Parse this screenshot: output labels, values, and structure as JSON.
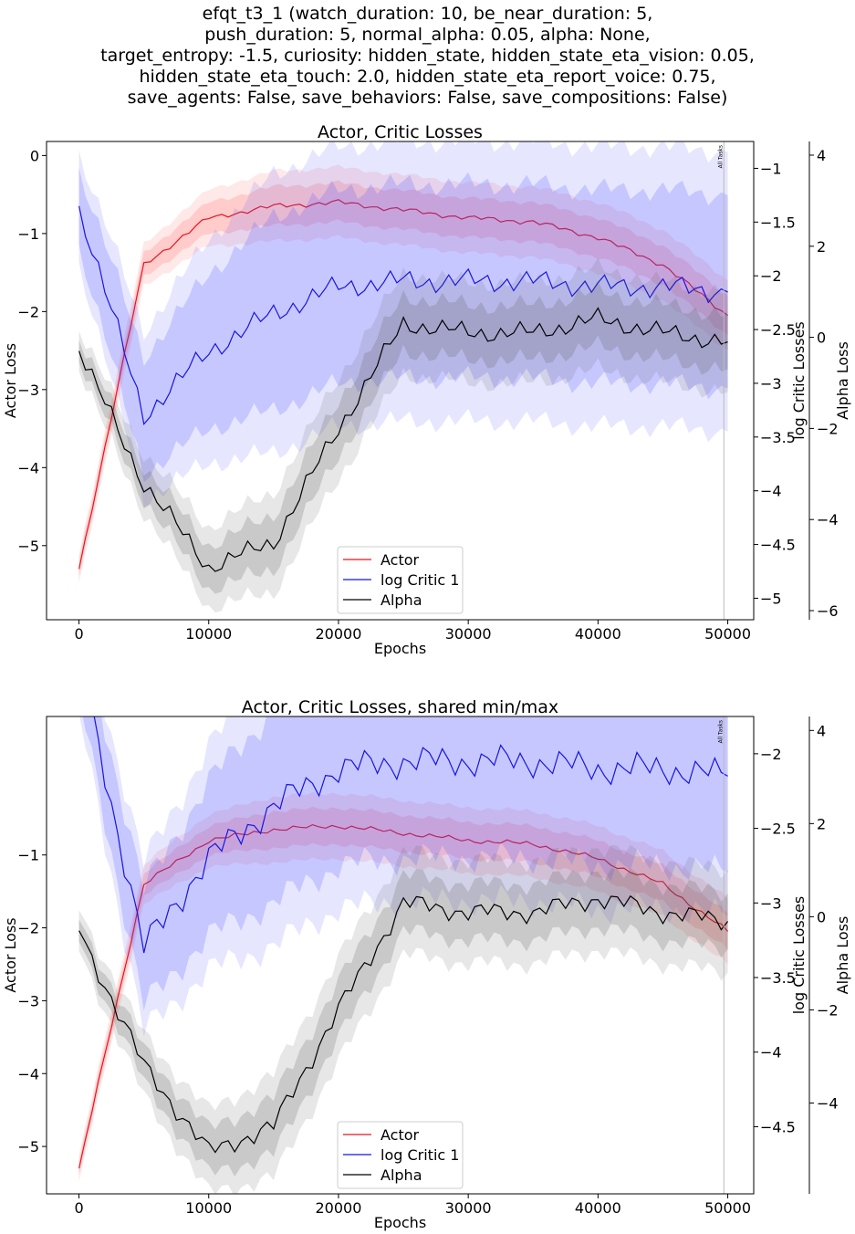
{
  "figure": {
    "suptitle_lines": [
      "efqt_t3_1 (watch_duration: 10, be_near_duration: 5,",
      "push_duration: 5, normal_alpha: 0.05, alpha: None,",
      "target_entropy: -1.5, curiosity: hidden_state, hidden_state_eta_vision: 0.05,",
      "hidden_state_eta_touch: 2.0, hidden_state_eta_report_voice: 0.75,",
      "save_agents: False, save_behaviors: False, save_compositions: False)"
    ]
  },
  "chart_data": [
    {
      "type": "line",
      "title": "Actor, Critic Losses",
      "xlabel": "Epochs",
      "ylabel_left": "Actor Loss",
      "ylabel_right1": "log Critic Losses",
      "ylabel_right2": "Alpha Loss",
      "xlim": [
        -2500,
        52000
      ],
      "ylim_actor": [
        -5.95,
        0.18
      ],
      "ylim_critic": [
        -5.2,
        -0.75
      ],
      "ylim_alpha": [
        -6.2,
        4.3
      ],
      "xticks": [
        0,
        10000,
        20000,
        30000,
        40000,
        50000
      ],
      "yticks_actor": [
        0,
        -1,
        -2,
        -3,
        -4,
        -5
      ],
      "yticks_critic": [
        -1.0,
        -1.5,
        -2.0,
        -2.5,
        -3.0,
        -3.5,
        -4.0,
        -4.5,
        -5.0
      ],
      "yticks_alpha": [
        4,
        2,
        0,
        -2,
        -4,
        -6
      ],
      "vline": {
        "x": 49700,
        "label": "All Tasks"
      },
      "legend_loc": "lower center",
      "legend": [
        "Actor",
        "log Critic 1",
        "Alpha"
      ],
      "colors": {
        "actor": "#e8141e",
        "critic": "#1515e6",
        "alpha": "#000000"
      },
      "x": [
        0,
        5000,
        10000,
        15000,
        20000,
        25000,
        30000,
        35000,
        40000,
        45000,
        50000
      ],
      "series": [
        {
          "name": "Actor",
          "axis": "actor",
          "values": [
            -5.3,
            -1.4,
            -0.8,
            -0.65,
            -0.6,
            -0.7,
            -0.8,
            -0.85,
            -1.05,
            -1.4,
            -2.05
          ]
        },
        {
          "name": "log Critic 1",
          "axis": "critic",
          "values": [
            -1.35,
            -3.3,
            -2.7,
            -2.35,
            -2.1,
            -2.05,
            -2.05,
            -2.05,
            -2.1,
            -2.1,
            -2.15
          ]
        },
        {
          "name": "Alpha",
          "axis": "alpha",
          "values": [
            -0.3,
            -3.2,
            -5.05,
            -4.5,
            -2.0,
            0.3,
            0.1,
            0.1,
            0.4,
            0.1,
            -0.1
          ]
        }
      ]
    },
    {
      "type": "line",
      "title": "Actor, Critic Losses, shared min/max",
      "xlabel": "Epochs",
      "ylabel_left": "Actor Loss",
      "ylabel_right1": "log Critic Losses",
      "ylabel_right2": "Alpha Loss",
      "xlim": [
        -2500,
        52000
      ],
      "ylim_actor": [
        -5.65,
        0.9
      ],
      "ylim_critic": [
        -4.95,
        -1.75
      ],
      "ylim_alpha": [
        -5.95,
        4.3
      ],
      "xticks": [
        0,
        10000,
        20000,
        30000,
        40000,
        50000
      ],
      "yticks_actor": [
        -1,
        -2,
        -3,
        -4,
        -5
      ],
      "yticks_critic": [
        -2.0,
        -2.5,
        -3.0,
        -3.5,
        -4.0,
        -4.5
      ],
      "yticks_alpha": [
        4,
        2,
        0,
        -2,
        -4
      ],
      "vline": {
        "x": 49700,
        "label": "All Tasks"
      },
      "legend_loc": "lower center",
      "legend": [
        "Actor",
        "log Critic 1",
        "Alpha"
      ],
      "colors": {
        "actor": "#e8141e",
        "critic": "#1515e6",
        "alpha": "#000000"
      },
      "x": [
        0,
        5000,
        10000,
        15000,
        20000,
        25000,
        30000,
        35000,
        40000,
        45000,
        50000
      ],
      "series": [
        {
          "name": "Actor",
          "axis": "actor",
          "values": [
            -5.3,
            -1.4,
            -0.8,
            -0.65,
            -0.6,
            -0.7,
            -0.8,
            -0.85,
            -1.05,
            -1.4,
            -2.05
          ]
        },
        {
          "name": "log Critic 1",
          "axis": "critic",
          "values": [
            -1.35,
            -3.3,
            -2.7,
            -2.35,
            -2.1,
            -2.05,
            -2.05,
            -2.05,
            -2.1,
            -2.1,
            -2.15
          ]
        },
        {
          "name": "Alpha",
          "axis": "alpha",
          "values": [
            -0.3,
            -3.2,
            -5.05,
            -4.5,
            -2.0,
            0.3,
            0.1,
            0.1,
            0.4,
            0.1,
            -0.1
          ]
        }
      ]
    }
  ]
}
